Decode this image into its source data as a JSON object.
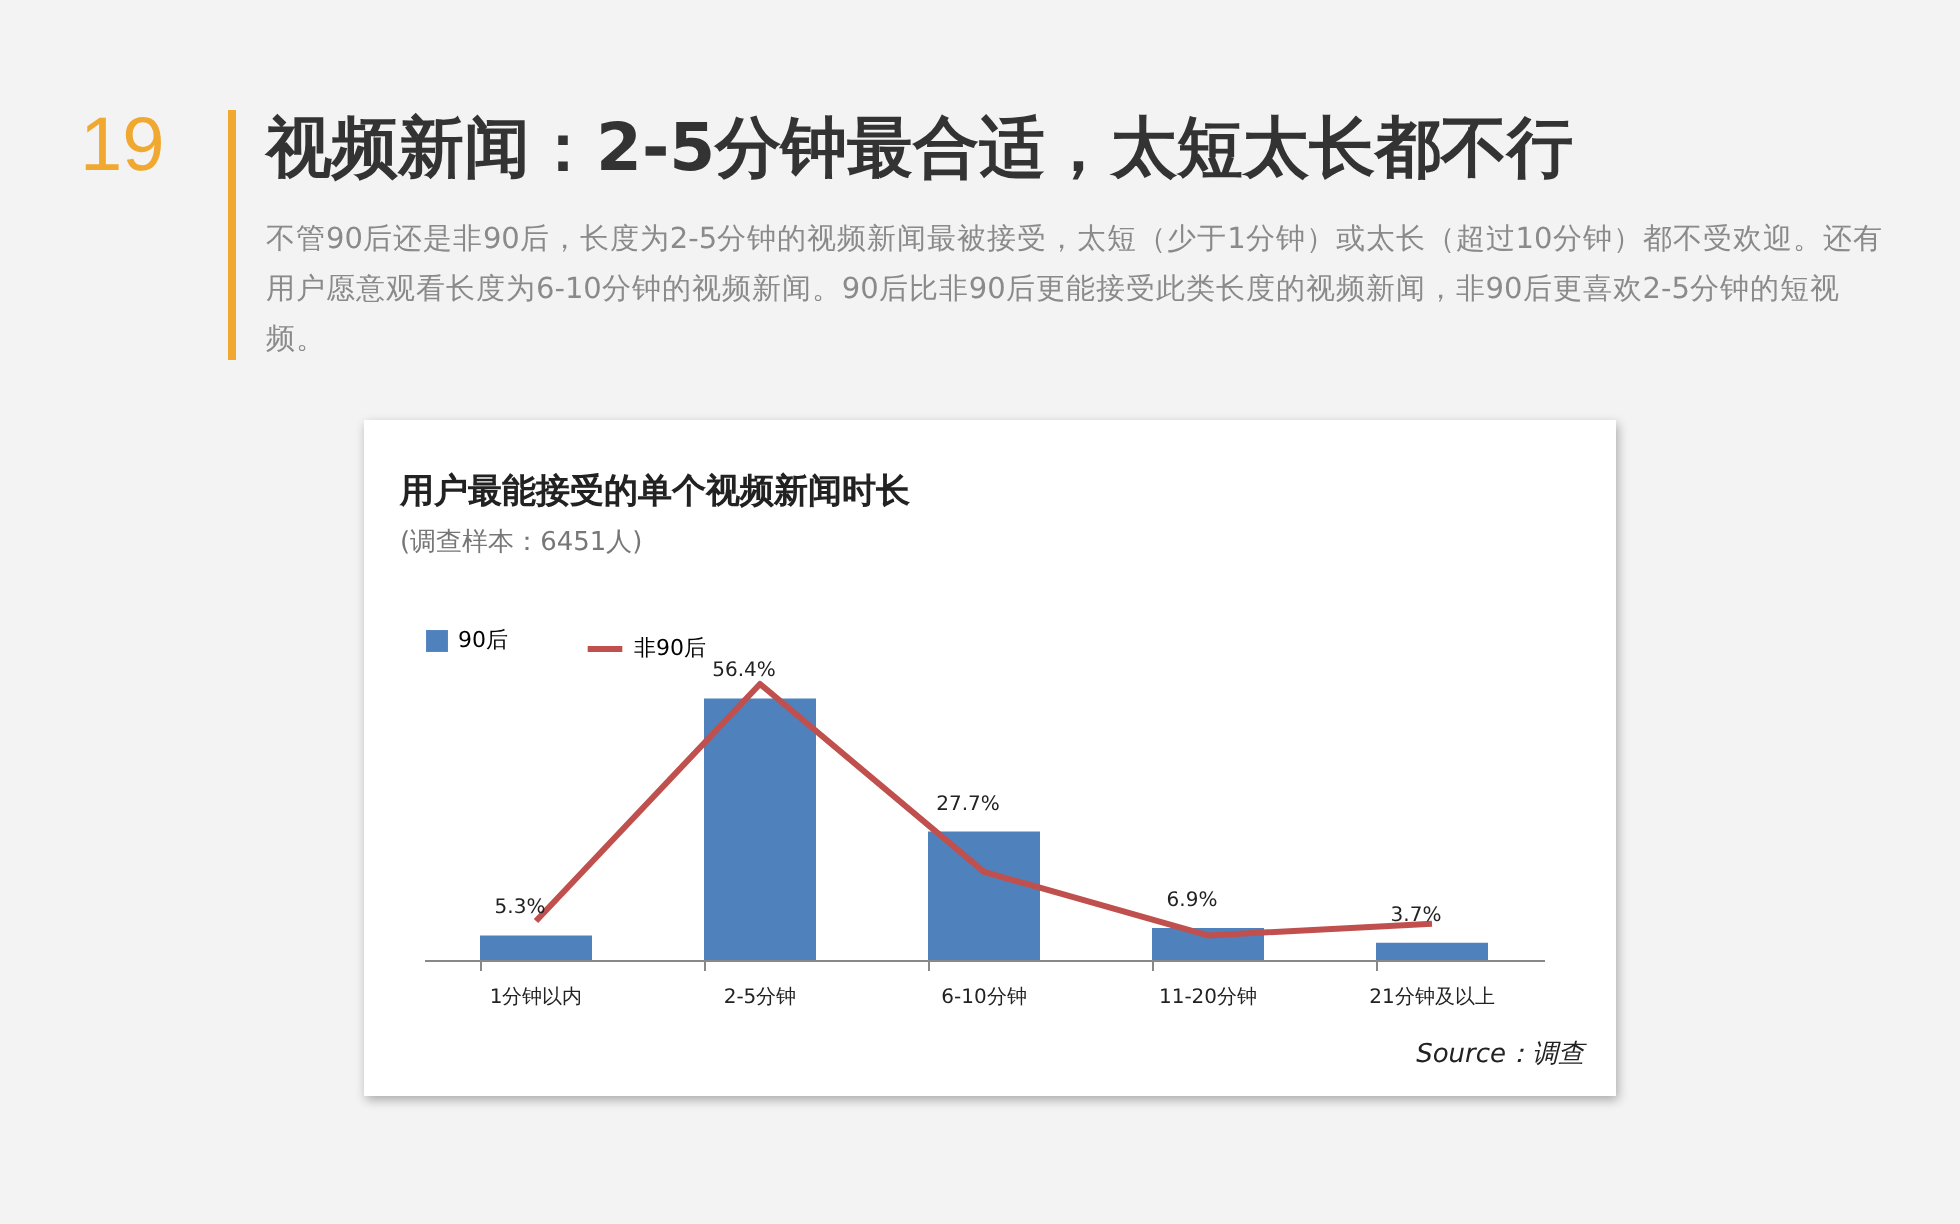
{
  "chart_data": {
    "type": "bar",
    "title": "用户最能接受的单个视频新闻时长",
    "subtitle": "(调查样本：6451人)",
    "annotations": [
      "19",
      "视频新闻：2-5分钟最合适，太短太长都不行",
      "不管90后还是非90后，长度为2-5分钟的视频新闻最被接受，太短（少于1分钟）或太长（超过10分钟）都不受欢迎。还有用户愿意观看长度为6-10分钟的视频新闻。90后比非90后更能接受此类长度的视频新闻，非90后更喜欢2-5分钟的短视频。",
      "Source：调查"
    ],
    "categories": [
      "1分钟以内",
      "2-5分钟",
      "6-10分钟",
      "11-20分钟",
      "21分钟及以上"
    ],
    "series": [
      {
        "name": "90后",
        "color": "#4f81bd",
        "values": [
          5.3,
          56.4,
          27.7,
          6.9,
          3.7
        ],
        "value_labels": [
          "5.3%",
          "56.4%",
          "27.7%",
          "6.9%",
          "3.7%"
        ]
      },
      {
        "name": "非90后",
        "type": "line",
        "color": "#c0504d",
        "values": [
          8.4,
          59.5,
          19,
          5.3,
          7.8
        ]
      }
    ],
    "legend": "top left",
    "grid": false,
    "marker": "none",
    "line_style": "solid"
  }
}
